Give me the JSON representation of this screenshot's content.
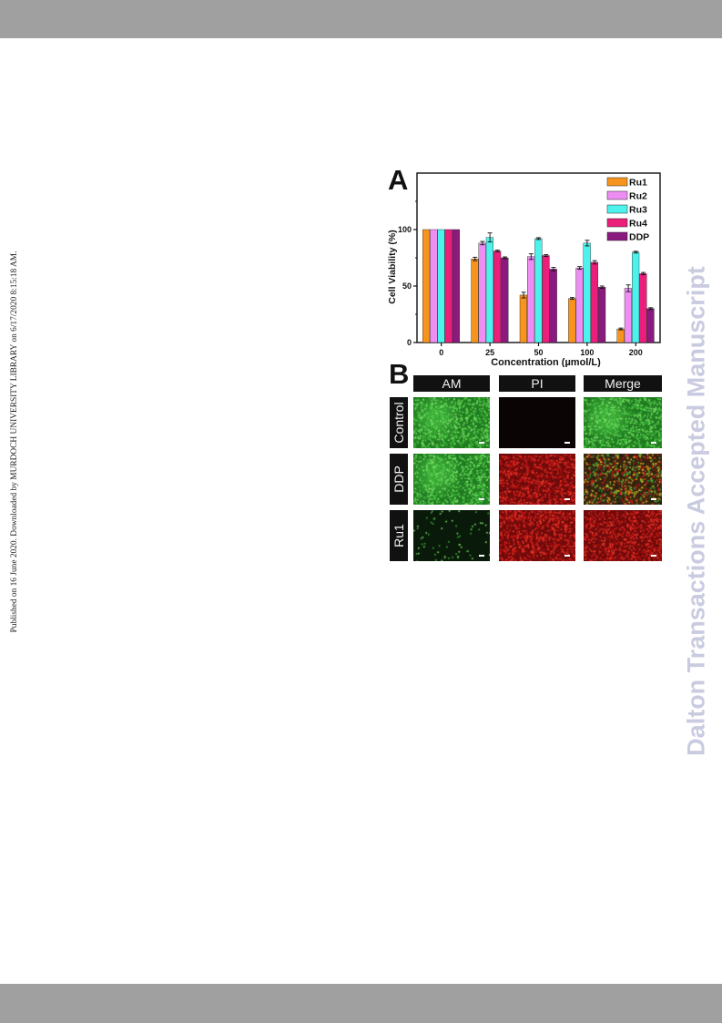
{
  "side_note": "Published on 16 June 2020. Downloaded by MURDOCH UNIVERSITY LIBRARY on 6/17/2020 8:15:18 AM.",
  "watermark": "Dalton Transactions Accepted Manuscript",
  "colors": {
    "band": "#a0a0a0",
    "watermark": "#c9cbe0",
    "Ru1": "#f7941d",
    "Ru2": "#ee8df2",
    "Ru3": "#4ef2ec",
    "Ru4": "#ec1e7b",
    "DDP": "#8b1a7f"
  },
  "figure": {
    "panel_a_letter": "A",
    "panel_b_letter": "B",
    "panel_b": {
      "columns": [
        "AM",
        "PI",
        "Merge"
      ],
      "rows": [
        "Control",
        "DDP",
        "Ru1"
      ],
      "images": [
        [
          "green",
          "black",
          "green"
        ],
        [
          "green",
          "red",
          "mix"
        ],
        [
          "sparse",
          "red",
          "red"
        ]
      ]
    }
  },
  "chart_data": {
    "type": "bar",
    "xlabel": "Concentration (µmol/L)",
    "ylabel": "Cell Viability (%)",
    "categories": [
      "0",
      "25",
      "50",
      "100",
      "200"
    ],
    "ylim": [
      0,
      150
    ],
    "yticks": [
      0,
      50,
      100
    ],
    "legend_position": "top-right",
    "series": [
      {
        "name": "Ru1",
        "values": [
          100,
          74,
          42,
          39,
          12
        ],
        "errors": [
          0,
          1.5,
          2.5,
          0.8,
          0.8
        ]
      },
      {
        "name": "Ru2",
        "values": [
          100,
          88,
          76,
          66,
          48
        ],
        "errors": [
          0,
          1.5,
          2.5,
          1.2,
          3
        ]
      },
      {
        "name": "Ru3",
        "values": [
          100,
          93,
          92,
          88,
          80
        ],
        "errors": [
          0,
          4,
          0.8,
          2.5,
          0.8
        ]
      },
      {
        "name": "Ru4",
        "values": [
          100,
          81,
          77,
          71,
          61
        ],
        "errors": [
          0,
          0.8,
          0.8,
          1.5,
          1
        ]
      },
      {
        "name": "DDP",
        "values": [
          100,
          75,
          65,
          49,
          30
        ],
        "errors": [
          0,
          0.8,
          1.5,
          1,
          0.8
        ]
      }
    ]
  }
}
